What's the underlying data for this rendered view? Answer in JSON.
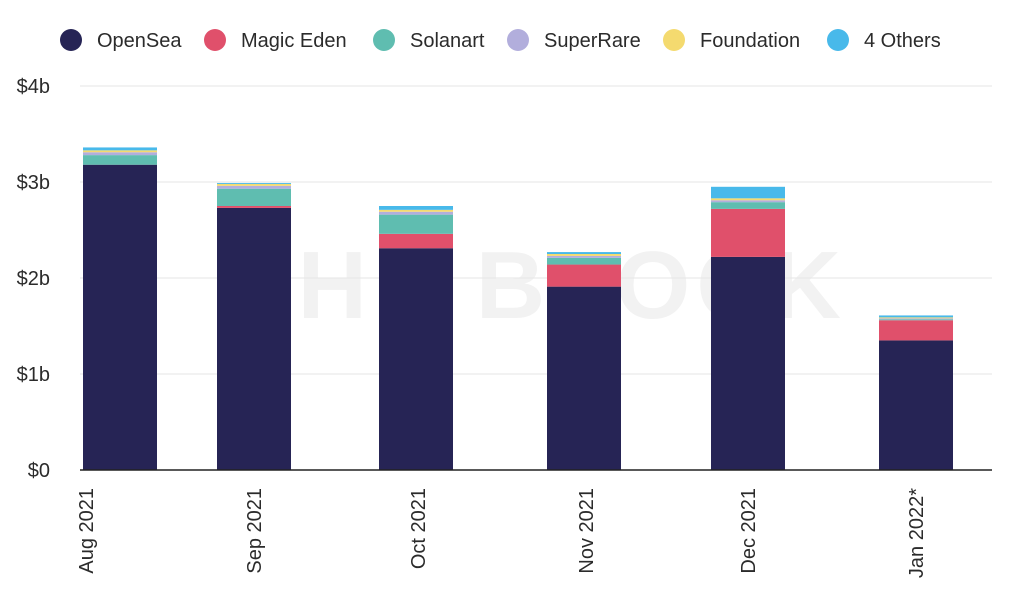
{
  "watermark": "THE BLOCK",
  "chart_data": {
    "type": "bar",
    "stacked": true,
    "title": "",
    "xlabel": "",
    "ylabel": "",
    "ylim": [
      0,
      4
    ],
    "y_ticks": [
      {
        "value": 0,
        "label": "$0"
      },
      {
        "value": 1,
        "label": "$1b"
      },
      {
        "value": 2,
        "label": "$2b"
      },
      {
        "value": 3,
        "label": "$3b"
      },
      {
        "value": 4,
        "label": "$4b"
      }
    ],
    "grid": true,
    "legend_position": "top",
    "categories": [
      "Aug 2021",
      "Sep 2021",
      "Oct 2021",
      "Nov 2021",
      "Dec 2021",
      "Jan 2022*"
    ],
    "series": [
      {
        "name": "OpenSea",
        "color": "#262455",
        "values": [
          3.18,
          2.73,
          2.31,
          1.91,
          2.22,
          1.35
        ]
      },
      {
        "name": "Magic Eden",
        "color": "#e0506b",
        "values": [
          0.0,
          0.02,
          0.15,
          0.23,
          0.5,
          0.21
        ]
      },
      {
        "name": "Solanart",
        "color": "#5fbdb0",
        "values": [
          0.1,
          0.18,
          0.2,
          0.07,
          0.07,
          0.01
        ]
      },
      {
        "name": "SuperRare",
        "color": "#b2aedc",
        "values": [
          0.03,
          0.03,
          0.03,
          0.02,
          0.02,
          0.01
        ]
      },
      {
        "name": "Foundation",
        "color": "#f4da6f",
        "values": [
          0.02,
          0.02,
          0.02,
          0.02,
          0.02,
          0.01
        ]
      },
      {
        "name": "4 Others",
        "color": "#48b9ea",
        "values": [
          0.03,
          0.01,
          0.04,
          0.02,
          0.12,
          0.02
        ]
      }
    ]
  }
}
